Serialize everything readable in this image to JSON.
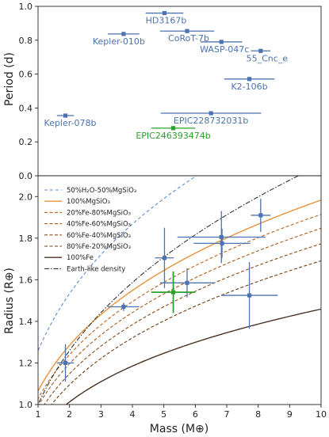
{
  "chart_data": [
    {
      "type": "scatter",
      "xlabel": "",
      "ylabel": "Period (d)",
      "xlim": [
        1,
        10
      ],
      "ylim": [
        0,
        1
      ],
      "yticks": [
        "0.0",
        "0.2",
        "0.4",
        "0.6",
        "0.8",
        "1.0"
      ],
      "grid": false,
      "points": [
        {
          "name": "HD3167b",
          "x": 5.02,
          "xerr": 0.6,
          "y": 0.96,
          "color": "#4c72b0",
          "label_pos": "below"
        },
        {
          "name": "CoRoT-7b",
          "x": 5.74,
          "xerr": 0.86,
          "y": 0.854,
          "color": "#4c72b0",
          "label_pos": "below"
        },
        {
          "name": "Kepler-010b",
          "x": 3.72,
          "xerr": 0.5,
          "y": 0.837,
          "color": "#4c72b0",
          "label_pos": "below"
        },
        {
          "name": "WASP-047c",
          "x": 6.83,
          "xerr": 0.66,
          "y": 0.79,
          "color": "#4c72b0",
          "label_pos": "below"
        },
        {
          "name": "55_Cnc_e",
          "x": 8.08,
          "xerr": 0.31,
          "y": 0.737,
          "color": "#4c72b0",
          "label_pos": "below"
        },
        {
          "name": "K2-106b",
          "x": 7.72,
          "xerr": 0.8,
          "y": 0.571,
          "color": "#4c72b0",
          "label_pos": "below"
        },
        {
          "name": "Kepler-078b",
          "x": 1.87,
          "xerr": 0.27,
          "y": 0.355,
          "color": "#4c72b0",
          "label_pos": "below"
        },
        {
          "name": "EPIC228732031b",
          "x": 6.5,
          "xerr": 1.6,
          "y": 0.369,
          "color": "#4c72b0",
          "label_pos": "below"
        },
        {
          "name": "EPIC246393474b",
          "x": 5.3,
          "xerr": 0.7,
          "y": 0.281,
          "color": "#2ca02c",
          "label_pos": "below"
        }
      ]
    },
    {
      "type": "scatter",
      "xlabel": "Mass (M⊕)",
      "ylabel": "Radius (R⊕)",
      "xlim": [
        1,
        10
      ],
      "ylim": [
        1.0,
        2.1
      ],
      "xticks": [
        "1",
        "2",
        "3",
        "4",
        "5",
        "6",
        "7",
        "8",
        "9",
        "10"
      ],
      "yticks": [
        "1.0",
        "1.2",
        "1.4",
        "1.6",
        "1.8",
        "2.0"
      ],
      "grid": false,
      "legend_position": "top-left",
      "curves": [
        {
          "name": "50%H₂O-50%MgSiO₃",
          "a": 1.258,
          "b": 0.285,
          "color": "#5b8bd0",
          "dash": "4,3",
          "width": 1.1
        },
        {
          "name": "100%MgSiO₃",
          "a": 1.065,
          "b": 0.27,
          "color": "#e8923a",
          "dash": "",
          "width": 1.4
        },
        {
          "name": "20%Fe-80%MgSiO₃",
          "a": 1.028,
          "b": 0.27,
          "color": "#b8661e",
          "dash": "4,2.5",
          "width": 1.1
        },
        {
          "name": "40%Fe-60%MgSiO₃",
          "a": 0.992,
          "b": 0.27,
          "color": "#a85a18",
          "dash": "4,2.5",
          "width": 1.1
        },
        {
          "name": "60%Fe-40%MgSiO₃",
          "a": 0.952,
          "b": 0.27,
          "color": "#8a4a14",
          "dash": "4,2.5",
          "width": 1.1
        },
        {
          "name": "80%Fe-20%MgSiO₃",
          "a": 0.908,
          "b": 0.27,
          "color": "#6e3c12",
          "dash": "4,2.5",
          "width": 1.1
        },
        {
          "name": "100%Fe",
          "a": 0.865,
          "b": 0.227,
          "color": "#4a3220",
          "dash": "",
          "width": 1.4
        },
        {
          "name": "Earth-like density",
          "a": 1.0,
          "b": 0.333,
          "color": "#333333",
          "dash": "6,2,1.5,2",
          "width": 1.1
        }
      ],
      "points": [
        {
          "x": 1.87,
          "xerr": 0.27,
          "y": 1.2,
          "yerr": 0.09,
          "color": "#4c72b0"
        },
        {
          "x": 3.72,
          "xerr": 0.5,
          "y": 1.47,
          "yerr": 0.02,
          "color": "#4c72b0"
        },
        {
          "x": 5.02,
          "xerr": 0.3,
          "y": 1.705,
          "yerr": 0.145,
          "color": "#4c72b0"
        },
        {
          "x": 5.74,
          "xerr": 0.86,
          "y": 1.585,
          "yerr": 0.07,
          "color": "#4c72b0"
        },
        {
          "x": 6.83,
          "xerr": 1.4,
          "y": 1.805,
          "yerr": 0.125,
          "color": "#4c72b0"
        },
        {
          "x": 6.85,
          "xerr": 0.9,
          "y": 1.775,
          "yerr": 0.07,
          "color": "#4c72b0"
        },
        {
          "x": 8.08,
          "xerr": 0.31,
          "y": 1.91,
          "yerr": 0.08,
          "color": "#4c72b0"
        },
        {
          "x": 7.72,
          "xerr": 0.9,
          "y": 1.525,
          "yerr": 0.16,
          "color": "#4c72b0"
        },
        {
          "x": 5.3,
          "xerr": 0.7,
          "y": 1.54,
          "yerr": 0.1,
          "color": "#2ca02c"
        }
      ]
    }
  ]
}
